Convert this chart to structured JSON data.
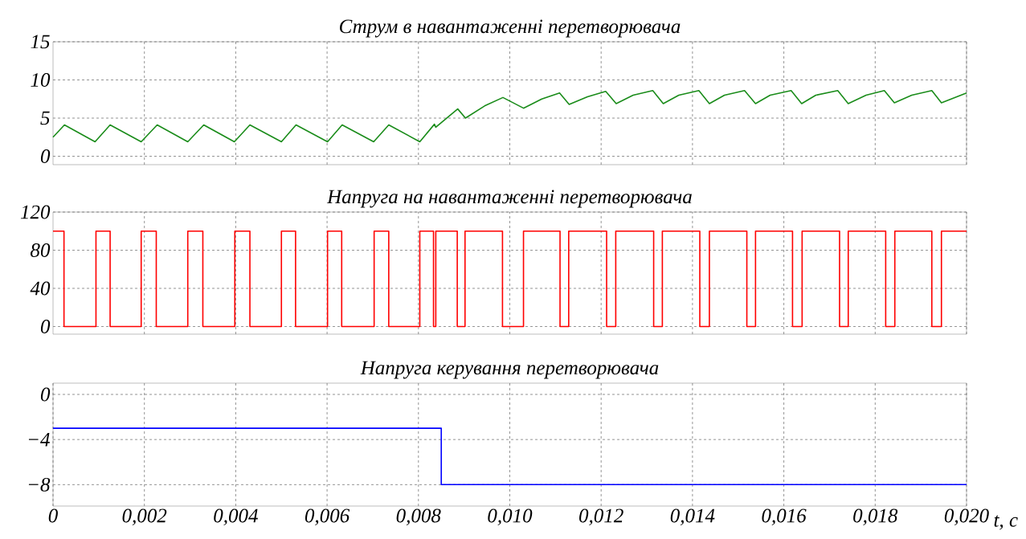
{
  "chart_data": [
    {
      "type": "line",
      "title": "Струм в навантаженні перетворювача",
      "color": "#1a8c1a",
      "grid": true,
      "tick_labels": "y",
      "xlim": [
        0,
        0.02
      ],
      "ylim": [
        -1.1,
        15
      ],
      "yticks": [
        0,
        5,
        10,
        15
      ],
      "xticks": [
        0.002,
        0.004,
        0.006,
        0.008,
        0.01,
        0.012,
        0.014,
        0.016,
        0.018,
        0.02
      ],
      "x": [
        0,
        0.00025,
        0.00092,
        0.00125,
        0.00193,
        0.00228,
        0.00295,
        0.0033,
        0.00397,
        0.00431,
        0.005,
        0.00532,
        0.00601,
        0.00633,
        0.00702,
        0.00735,
        0.00803,
        0.00835,
        0.00838,
        0.00886,
        0.00903,
        0.00945,
        0.00985,
        0.0103,
        0.0107,
        0.01109,
        0.0113,
        0.0117,
        0.0121,
        0.01233,
        0.0127,
        0.01313,
        0.01336,
        0.0137,
        0.01414,
        0.01437,
        0.0147,
        0.01514,
        0.01538,
        0.0157,
        0.01616,
        0.01639,
        0.0167,
        0.01718,
        0.01741,
        0.0178,
        0.0182,
        0.01842,
        0.0188,
        0.01924,
        0.01945,
        0.02
      ],
      "values": [
        2.5,
        4.1,
        1.9,
        4.1,
        1.9,
        4.1,
        1.9,
        4.1,
        1.9,
        4.1,
        1.9,
        4.1,
        1.9,
        4.1,
        1.9,
        4.1,
        1.9,
        4.2,
        3.8,
        6.2,
        5.0,
        6.6,
        7.7,
        6.3,
        7.5,
        8.3,
        6.8,
        7.8,
        8.5,
        6.9,
        8.0,
        8.6,
        6.9,
        8.0,
        8.6,
        6.9,
        8.0,
        8.6,
        6.9,
        8.0,
        8.6,
        6.9,
        8.0,
        8.6,
        6.9,
        8.0,
        8.6,
        7.0,
        8.0,
        8.6,
        7.0,
        8.3
      ]
    },
    {
      "type": "step",
      "title": "Напруга на навантаженні перетворювача",
      "color": "#ff0000",
      "grid": true,
      "tick_labels": "y",
      "xlim": [
        0,
        0.02
      ],
      "ylim": [
        -8,
        120
      ],
      "yticks": [
        0,
        40,
        80,
        120
      ],
      "xticks": [
        0.002,
        0.004,
        0.006,
        0.008,
        0.01,
        0.012,
        0.014,
        0.016,
        0.018,
        0.02
      ],
      "x": [
        0,
        0.00024,
        0.00094,
        0.00125,
        0.00193,
        0.00226,
        0.00295,
        0.00328,
        0.00398,
        0.00431,
        0.005,
        0.00531,
        0.00601,
        0.00632,
        0.00703,
        0.00735,
        0.00803,
        0.00833,
        0.00838,
        0.00885,
        0.00902,
        0.00984,
        0.0103,
        0.0111,
        0.01129,
        0.01212,
        0.01232,
        0.01315,
        0.01334,
        0.01416,
        0.01437,
        0.01519,
        0.01538,
        0.01619,
        0.0164,
        0.01722,
        0.01741,
        0.01823,
        0.01843,
        0.01924,
        0.01945,
        0.02
      ],
      "values": [
        100,
        0,
        100,
        0,
        100,
        0,
        100,
        0,
        100,
        0,
        100,
        0,
        100,
        0,
        100,
        0,
        100,
        0,
        100,
        0,
        100,
        0,
        100,
        0,
        100,
        0,
        100,
        0,
        100,
        0,
        100,
        0,
        100,
        0,
        100,
        0,
        100,
        0,
        100,
        0,
        100,
        100
      ]
    },
    {
      "type": "step",
      "title": "Напруга керування перетворювача",
      "xlabel": "t, c",
      "color": "#0000ff",
      "grid": true,
      "xlim": [
        0,
        0.02
      ],
      "ylim": [
        -9.9,
        1
      ],
      "yticks": [
        {
          "value": 0,
          "label": "0"
        },
        {
          "value": -4,
          "label": "−4"
        },
        {
          "value": -8,
          "label": "−8"
        }
      ],
      "xticks": [
        0,
        {
          "value": 0.002,
          "label": "0,002"
        },
        {
          "value": 0.004,
          "label": "0,004"
        },
        {
          "value": 0.006,
          "label": "0,006"
        },
        {
          "value": 0.008,
          "label": "0,008"
        },
        {
          "value": 0.01,
          "label": "0,010"
        },
        {
          "value": 0.012,
          "label": "0,012"
        },
        {
          "value": 0.014,
          "label": "0,014"
        },
        {
          "value": 0.016,
          "label": "0,016"
        },
        {
          "value": 0.018,
          "label": "0,018"
        },
        {
          "value": 0.02,
          "label": "0,020"
        }
      ],
      "x": [
        0,
        0.0085,
        0.02
      ],
      "values": [
        -3,
        -8,
        -8
      ]
    }
  ]
}
